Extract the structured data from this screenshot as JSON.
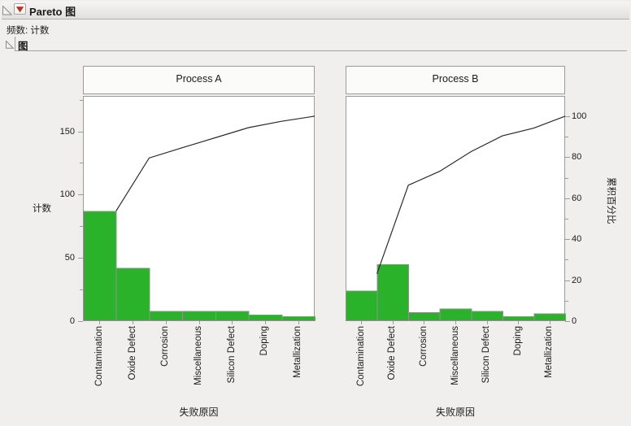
{
  "header": {
    "title": "Pareto 图",
    "frequency_label": "频数: 计数",
    "section_title": "图"
  },
  "icons": {
    "outline_toggle": "open-disclosure-triangle",
    "menu_button": "red-triangle-down"
  },
  "colors": {
    "bar_fill": "#2ab32a",
    "bar_border": "#919190",
    "cumulative_line": "#2b2b2b",
    "frame": "#9b9b99",
    "plot_background": "#ffffff",
    "title_box_background": "#fbfbfa",
    "page_background": "#f0efed",
    "red_triangle": "#d42a1a"
  },
  "chart_data": [
    {
      "type": "pareto",
      "title": "Process A",
      "categories": [
        "Contamination",
        "Oxide Defect",
        "Corrosion",
        "Miscellaneous",
        "Silicon Defect",
        "Doping",
        "Metallization"
      ],
      "values": [
        87,
        42,
        8,
        8,
        8,
        5,
        4
      ],
      "total": 162,
      "cumulative_percent": [
        53.7,
        79.6,
        84.6,
        89.5,
        94.4,
        97.5,
        100
      ],
      "xlabel": "失败原因",
      "ylabel": "计数",
      "count_ticks": [
        0,
        50,
        100,
        150
      ],
      "count_minor_ticks": [
        25,
        75,
        125,
        175
      ],
      "count_axis_max": 178,
      "percent_100_equals_count": 162,
      "legend": "none",
      "grid": "off"
    },
    {
      "type": "pareto",
      "title": "Process B",
      "categories": [
        "Contamination",
        "Oxide Defect",
        "Corrosion",
        "Miscellaneous",
        "Silicon Defect",
        "Doping",
        "Metallization"
      ],
      "values": [
        24,
        45,
        7,
        10,
        8,
        4,
        6
      ],
      "total": 104,
      "cumulative_percent": [
        23.1,
        66.3,
        73.1,
        82.7,
        90.4,
        94.2,
        100
      ],
      "xlabel": "失败原因",
      "y2label": "累积百分比",
      "percent_ticks": [
        0,
        20,
        40,
        60,
        80,
        100
      ],
      "percent_minor_ticks": [
        10,
        30,
        50,
        70,
        90
      ],
      "count_axis_max": 178,
      "percent_100_equals_count": 162,
      "legend": "none",
      "grid": "off"
    }
  ]
}
